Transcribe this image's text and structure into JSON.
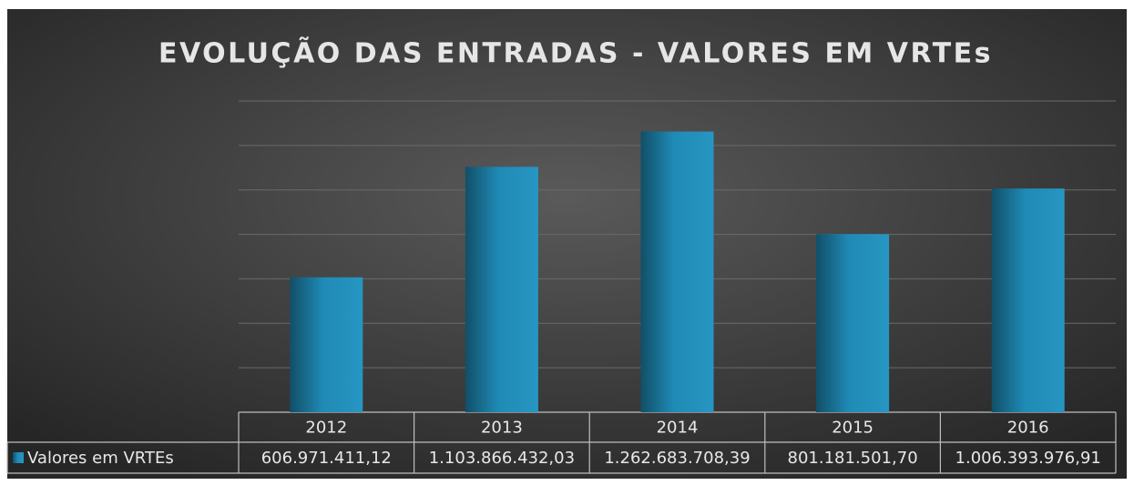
{
  "chart_data": {
    "type": "bar",
    "title": "EVOLUÇÃO DAS ENTRADAS - VALORES EM VRTEs",
    "categories": [
      "2012",
      "2013",
      "2014",
      "2015",
      "2016"
    ],
    "series": [
      {
        "name": "Valores em VRTEs",
        "color": "#1f8ab5",
        "values": [
          606971411.12,
          1103866432.03,
          1262683708.39,
          801181501.7,
          1006393976.91
        ],
        "value_labels": [
          "606.971.411,12",
          "1.103.866.432,03",
          "1.262.683.708,39",
          "801.181.501,70",
          "1.006.393.976,91"
        ]
      }
    ],
    "ylim": [
      0,
      1400000000
    ],
    "yticks": [
      0,
      200000000,
      400000000,
      600000000,
      800000000,
      1000000000,
      1200000000,
      1400000000
    ],
    "grid": true
  }
}
